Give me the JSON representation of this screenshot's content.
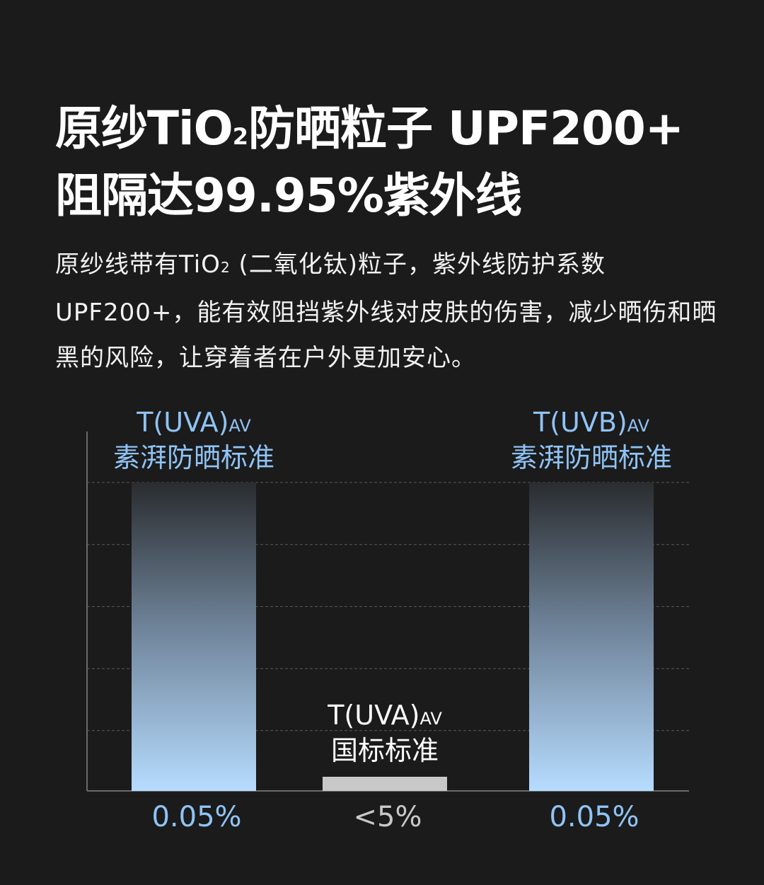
{
  "headline": {
    "line1_pre": "原纱TiO",
    "line1_sub": "2",
    "line1_post": "防晒粒子 UPF200+",
    "line2": "阻隔达99.95%紫外线"
  },
  "body": {
    "pre": "原纱线带有TiO",
    "sub": "2",
    "post": "(二氧化钛)粒子，紫外线防护系数UPF200+，能有效阻挡紫外线对皮肤的伤害，减少晒伤和晒黑的风险，让穿着者在户外更加安心。"
  },
  "colors": {
    "background": "#1b1b1b",
    "accent_blue": "#8fc3f6",
    "bar_gradient_top": "#2a2c2f",
    "bar_gradient_bottom": "#b6dcff",
    "standard_gray": "#c8c8c8",
    "grid_dash": "#5a5a5a",
    "axis": "#6a6a6a"
  },
  "chart_data": {
    "type": "bar",
    "categories": [
      {
        "label_main": "T(UVA)",
        "label_sub": "AV",
        "label_line2": "素湃防晒标准",
        "value_text": "0.05%"
      },
      {
        "label_main": "T(UVA)",
        "label_sub": "AV",
        "label_line2": "国标标准",
        "value_text": "<5%"
      },
      {
        "label_main": "T(UVB)",
        "label_sub": "AV",
        "label_line2": "素湃防晒标准",
        "value_text": "0.05%"
      }
    ],
    "bar_fill_levels": [
      1.0,
      0.045,
      1.0
    ],
    "bar_styles": [
      "gradient",
      "gray",
      "gradient"
    ],
    "label_colors": [
      "#8fc3f6",
      "#ffffff",
      "#8fc3f6"
    ],
    "value_colors": [
      "#8fc3f6",
      "#c8c8c8",
      "#8fc3f6"
    ],
    "grid": true,
    "grid_lines": 5
  }
}
